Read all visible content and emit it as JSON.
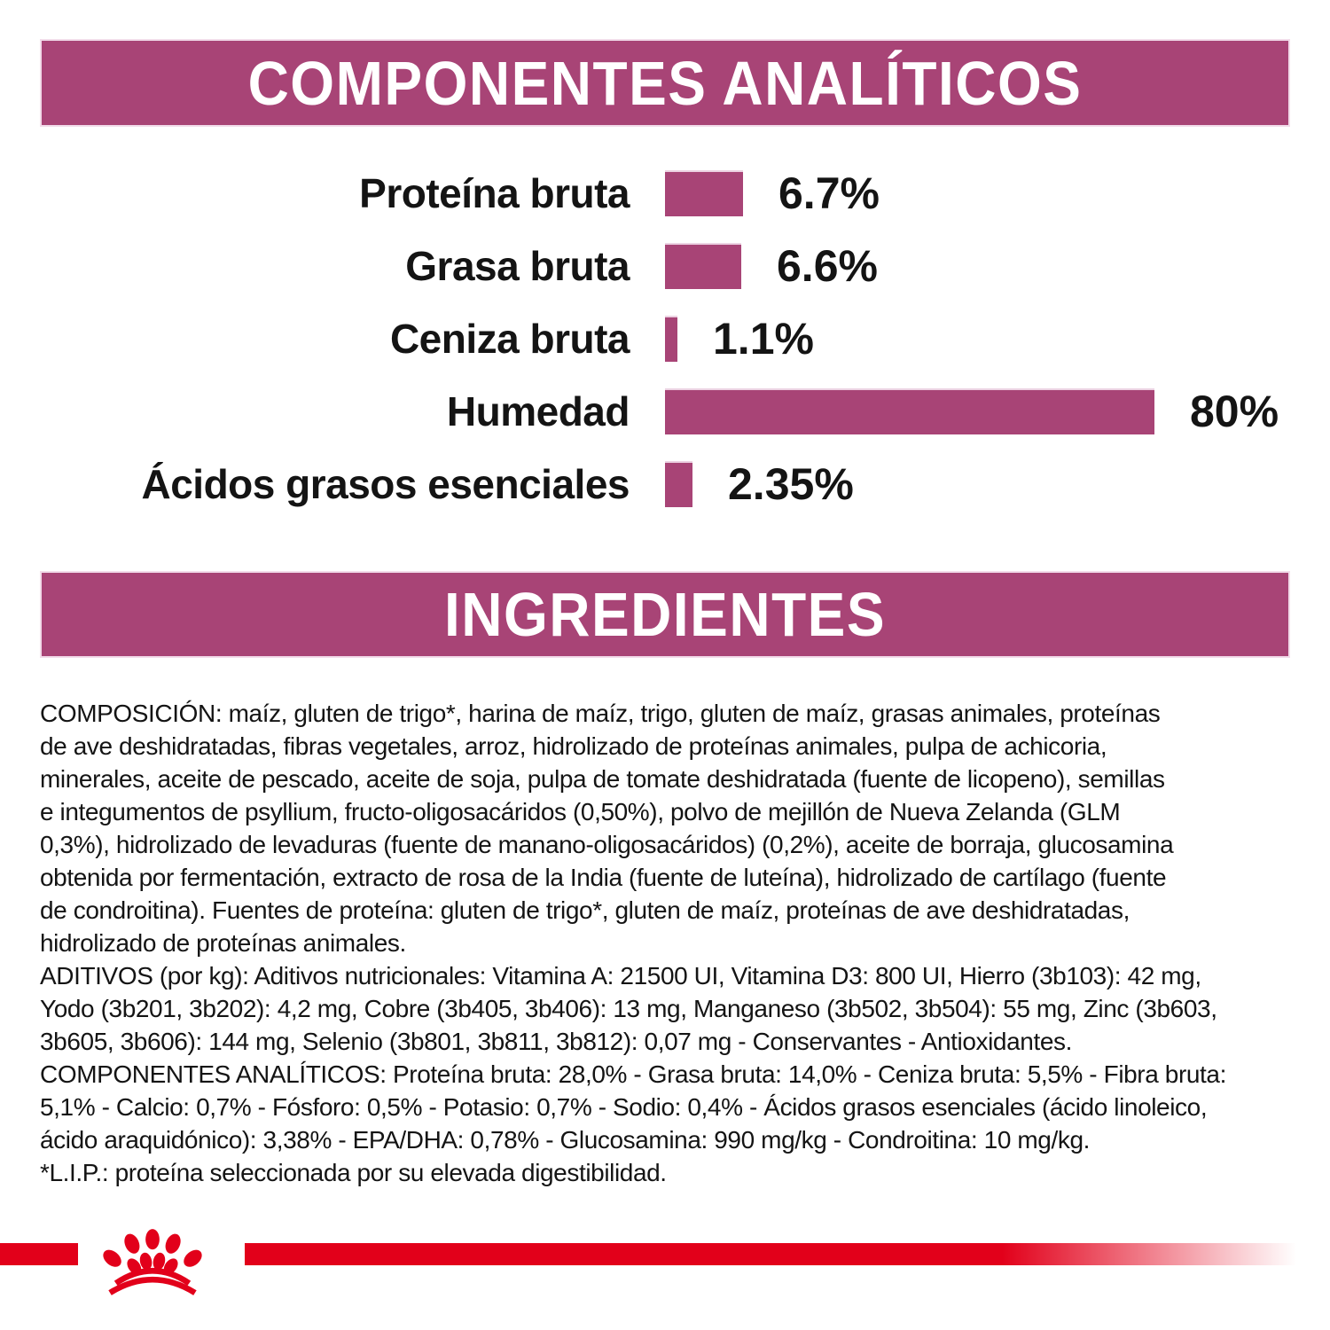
{
  "page": {
    "analytics_header": "COMPONENTES ANALÍTICOS",
    "ingredients_header": "INGREDIENTES"
  },
  "chart_data": {
    "type": "bar",
    "orientation": "horizontal",
    "title": "COMPONENTES ANALÍTICOS",
    "unit": "%",
    "categories": [
      "Proteína bruta",
      "Grasa bruta",
      "Ceniza bruta",
      "Humedad",
      "Ácidos grasos esenciales"
    ],
    "values": [
      6.7,
      6.6,
      1.1,
      80,
      2.35
    ],
    "value_labels": [
      "6.7%",
      "6.6%",
      "1.1%",
      "80%",
      "2.35%"
    ],
    "bar_color": "#A84476",
    "grid": false,
    "legend": false
  },
  "ingredients_text": {
    "lines": [
      "COMPOSICIÓN: maíz, gluten de trigo*, harina de maíz, trigo, gluten de maíz, grasas animales, proteínas",
      "de ave deshidratadas, fibras vegetales, arroz, hidrolizado de proteínas animales, pulpa de achicoria,",
      "minerales, aceite de pescado, aceite de soja, pulpa de tomate deshidratada (fuente de licopeno), semillas",
      "e integumentos de psyllium, fructo-oligosacáridos (0,50%), polvo de mejillón de Nueva Zelanda (GLM",
      "0,3%), hidrolizado de levaduras (fuente de manano-oligosacáridos) (0,2%), aceite de borraja, glucosamina",
      "obtenida por fermentación, extracto de rosa de la India (fuente de luteína), hidrolizado de cartílago (fuente",
      "de condroitina). Fuentes de proteína: gluten de trigo*, gluten de maíz, proteínas de ave deshidratadas,",
      "hidrolizado de proteínas animales.",
      "ADITIVOS (por kg): Aditivos nutricionales: Vitamina A: 21500 UI, Vitamina D3: 800 UI, Hierro (3b103): 42 mg,",
      "Yodo (3b201, 3b202): 4,2 mg, Cobre (3b405, 3b406): 13 mg, Manganeso (3b502, 3b504): 55 mg, Zinc (3b603,",
      "3b605, 3b606): 144 mg, Selenio (3b801, 3b811, 3b812): 0,07 mg - Conservantes - Antioxidantes.",
      "COMPONENTES ANALÍTICOS: Proteína bruta: 28,0% - Grasa bruta: 14,0% - Ceniza bruta: 5,5% - Fibra bruta:",
      "5,1% - Calcio: 0,7% - Fósforo: 0,5% - Potasio: 0,7% - Sodio: 0,4% - Ácidos grasos esenciales (ácido linoleico,",
      "ácido araquidónico): 3,38% - EPA/DHA: 0,78% - Glucosamina: 990 mg/kg - Condroitina: 10 mg/kg.",
      "*L.I.P.: proteína seleccionada por su elevada digestibilidad."
    ]
  },
  "colors": {
    "accent_purple": "#A84476",
    "brand_red": "#E2001A"
  },
  "logo": {
    "name": "royal-canin-crown-logo"
  }
}
